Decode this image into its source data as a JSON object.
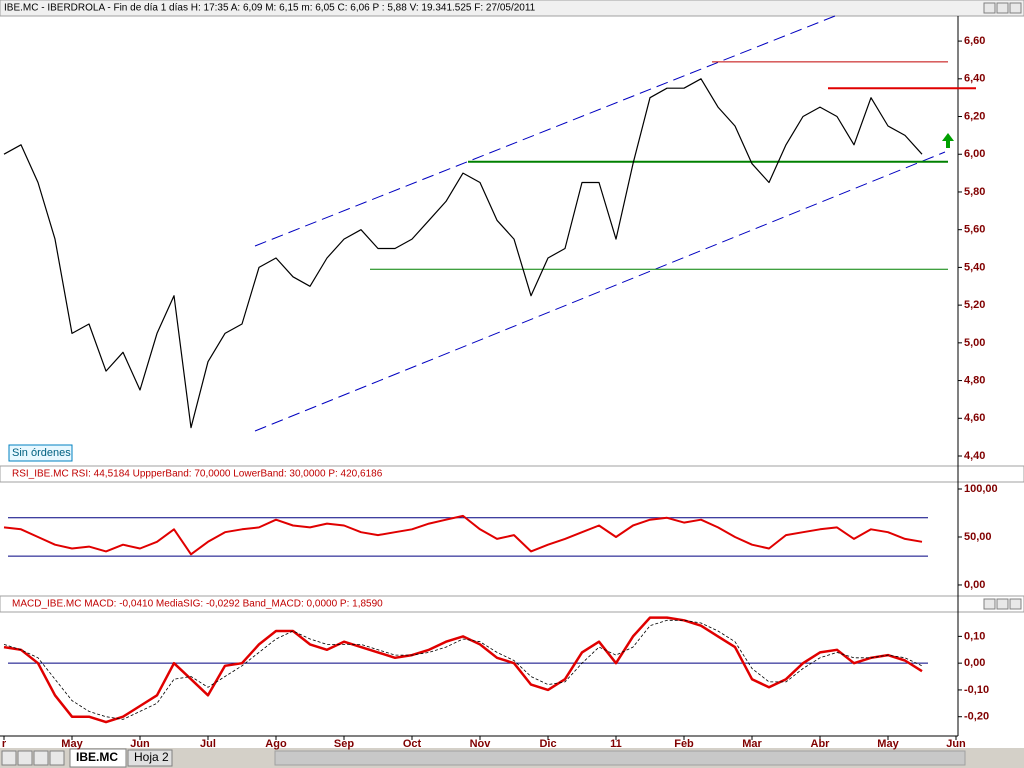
{
  "status": "Sin órdenes",
  "tabs": [
    "IBE.MC",
    "Hoja 2"
  ],
  "chart_data": [
    {
      "type": "line",
      "title": "IBE.MC - IBERDROLA - Fin de día 1 días H: 17:35  A: 6,09  M: 6,15  m: 6,05  C: 6,06  P : 5,88  V: 19.341.525  F: 27/05/2011",
      "color": "#000000",
      "values": [
        6.0,
        6.05,
        5.85,
        5.55,
        5.05,
        5.1,
        4.85,
        4.95,
        4.75,
        5.05,
        5.25,
        4.55,
        4.9,
        5.05,
        5.1,
        5.4,
        5.45,
        5.35,
        5.3,
        5.45,
        5.55,
        5.6,
        5.5,
        5.5,
        5.55,
        5.65,
        5.75,
        5.9,
        5.85,
        5.65,
        5.55,
        5.25,
        5.45,
        5.5,
        5.85,
        5.85,
        5.55,
        5.95,
        6.3,
        6.35,
        6.35,
        6.4,
        6.25,
        6.15,
        5.95,
        5.85,
        6.05,
        6.2,
        6.25,
        6.2,
        6.05,
        6.3,
        6.15,
        6.1,
        6.0,
        null,
        null
      ],
      "levels": [
        {
          "value": 6.49,
          "color": "#c00000"
        },
        {
          "value": 6.35,
          "color": "#e00000"
        },
        {
          "value": 5.96,
          "color": "#008000"
        },
        {
          "value": 5.39,
          "color": "#008000"
        }
      ],
      "ylim": [
        4.347,
        6.733
      ],
      "yticks": [
        {
          "value": 4.4,
          "label": "4,40"
        },
        {
          "value": 4.6,
          "label": "4,60"
        },
        {
          "value": 4.8,
          "label": "4,80"
        },
        {
          "value": 5.0,
          "label": "5,00"
        },
        {
          "value": 5.2,
          "label": "5,20"
        },
        {
          "value": 5.4,
          "label": "5,40"
        },
        {
          "value": 5.6,
          "label": "5,60"
        },
        {
          "value": 5.8,
          "label": "5,80"
        },
        {
          "value": 6.0,
          "label": "6,00"
        },
        {
          "value": 6.2,
          "label": "6,20"
        },
        {
          "value": 6.4,
          "label": "6,40"
        },
        {
          "value": 6.6,
          "label": "6,60"
        }
      ]
    },
    {
      "type": "line",
      "title": "RSI_IBE.MC  RSI: 44,5184  UppperBand: 70,0000  LowerBand: 30,0000  P: 420,6186",
      "color": "#e00000",
      "values": [
        60,
        58,
        50,
        42,
        38,
        40,
        35,
        42,
        38,
        45,
        58,
        32,
        45,
        55,
        58,
        60,
        68,
        62,
        60,
        64,
        62,
        55,
        52,
        55,
        58,
        64,
        68,
        72,
        58,
        48,
        52,
        35,
        42,
        48,
        55,
        62,
        50,
        62,
        68,
        70,
        65,
        68,
        60,
        50,
        42,
        38,
        52,
        55,
        58,
        60,
        48,
        58,
        55,
        48,
        45,
        null,
        null
      ],
      "levels": [
        {
          "value": 70,
          "color": "#000080"
        },
        {
          "value": 30,
          "color": "#000080"
        }
      ],
      "ylim": [
        -11.5,
        107.3
      ],
      "yticks": [
        {
          "value": 0,
          "label": "0,00"
        },
        {
          "value": 50,
          "label": "50,00"
        },
        {
          "value": 100,
          "label": "100,00"
        }
      ]
    },
    {
      "type": "line",
      "title": "MACD_IBE.MC  MACD: -0,0410  MediaSIG: -0,0292  Band_MACD: 0,0000  P: 1,8590",
      "categories": [
        "r",
        null,
        null,
        null,
        "May",
        null,
        null,
        null,
        "Jun",
        null,
        null,
        null,
        "Jul",
        null,
        null,
        null,
        "Ago",
        null,
        null,
        null,
        "Sep",
        null,
        null,
        null,
        "Oct",
        null,
        null,
        null,
        "Nov",
        null,
        null,
        null,
        "Dic",
        null,
        null,
        null,
        "11",
        null,
        null,
        null,
        "Feb",
        null,
        null,
        null,
        "Mar",
        null,
        null,
        null,
        "Abr",
        null,
        null,
        null,
        "May",
        null,
        null,
        null,
        "Jun"
      ],
      "series": [
        {
          "color": "#e00000",
          "values": [
            0.06,
            0.05,
            0.0,
            -0.12,
            -0.2,
            -0.2,
            -0.22,
            -0.2,
            -0.16,
            -0.12,
            0.0,
            -0.06,
            -0.12,
            -0.01,
            0.0,
            0.07,
            0.12,
            0.12,
            0.07,
            0.05,
            0.08,
            0.06,
            0.04,
            0.02,
            0.03,
            0.05,
            0.08,
            0.1,
            0.07,
            0.02,
            0.0,
            -0.08,
            -0.1,
            -0.06,
            0.04,
            0.08,
            0.0,
            0.1,
            0.17,
            0.17,
            0.16,
            0.14,
            0.1,
            0.06,
            -0.06,
            -0.09,
            -0.06,
            0.0,
            0.04,
            0.05,
            0.0,
            0.02,
            0.03,
            0.01,
            -0.03,
            null,
            null
          ]
        },
        {
          "color": "#000000",
          "values": [
            0.07,
            0.05,
            0.02,
            -0.06,
            -0.14,
            -0.18,
            -0.2,
            -0.21,
            -0.18,
            -0.15,
            -0.06,
            -0.05,
            -0.09,
            -0.05,
            -0.01,
            0.04,
            0.09,
            0.12,
            0.09,
            0.07,
            0.07,
            0.07,
            0.05,
            0.03,
            0.03,
            0.04,
            0.06,
            0.09,
            0.08,
            0.04,
            0.01,
            -0.05,
            -0.08,
            -0.07,
            0.0,
            0.06,
            0.03,
            0.06,
            0.14,
            0.16,
            0.16,
            0.15,
            0.12,
            0.08,
            -0.02,
            -0.07,
            -0.07,
            -0.02,
            0.02,
            0.04,
            0.02,
            0.02,
            0.03,
            0.02,
            -0.01,
            null,
            null
          ]
        }
      ],
      "levels": [
        {
          "value": 0,
          "color": "#000080"
        }
      ],
      "ylim": [
        -0.272,
        0.191
      ],
      "yticks": [
        {
          "value": -0.2,
          "label": "-0,20"
        },
        {
          "value": -0.1,
          "label": "-0,10"
        },
        {
          "value": 0,
          "label": "0,00"
        },
        {
          "value": 0.1,
          "label": "0,10"
        }
      ]
    }
  ]
}
